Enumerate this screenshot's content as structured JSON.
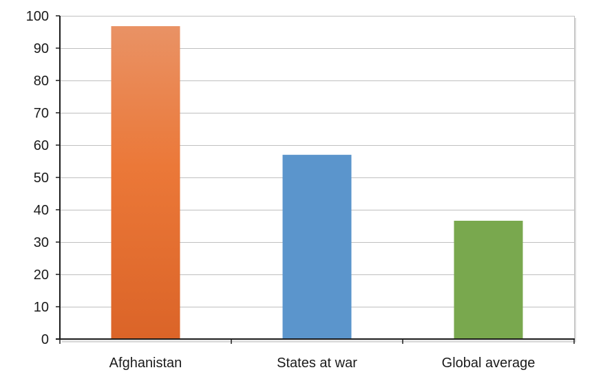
{
  "chart_data": {
    "type": "bar",
    "title": "",
    "xlabel": "",
    "ylabel": "",
    "categories": [
      "Afghanistan",
      "States at war",
      "Global average"
    ],
    "values": [
      96.8,
      57,
      36.6
    ],
    "colors": [
      "#E8712E",
      "#5B95CC",
      "#79A84E"
    ],
    "ylim": [
      0,
      100
    ],
    "yticks": [
      0,
      10,
      20,
      30,
      40,
      50,
      60,
      70,
      80,
      90,
      100
    ],
    "grid": true,
    "legend": "none"
  }
}
